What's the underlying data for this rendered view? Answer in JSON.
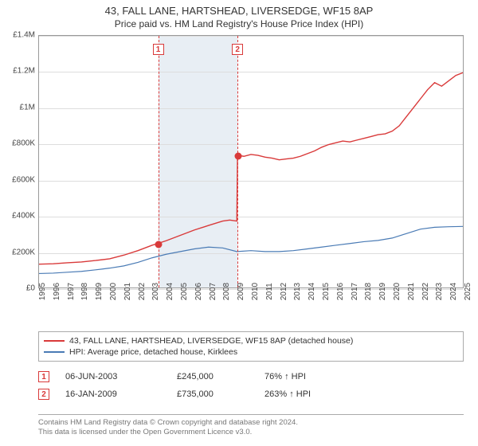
{
  "title": {
    "main": "43, FALL LANE, HARTSHEAD, LIVERSEDGE, WF15 8AP",
    "sub": "Price paid vs. HM Land Registry's House Price Index (HPI)"
  },
  "chart": {
    "type": "line",
    "background_color": "#ffffff",
    "shade_color": "#e8eef4",
    "grid_color": "#dddddd",
    "border_color": "#999999",
    "dash_color": "#d93a3a",
    "x_years": [
      1995,
      1996,
      1997,
      1998,
      1999,
      2000,
      2001,
      2002,
      2003,
      2004,
      2005,
      2006,
      2007,
      2008,
      2009,
      2010,
      2011,
      2012,
      2013,
      2014,
      2015,
      2016,
      2017,
      2018,
      2019,
      2020,
      2021,
      2022,
      2023,
      2024,
      2025
    ],
    "xlim": [
      1995,
      2025
    ],
    "ylim": [
      0,
      1400000
    ],
    "yticks": [
      0,
      200000,
      400000,
      600000,
      800000,
      1000000,
      1200000,
      1400000
    ],
    "ylabels": [
      "£0",
      "£200K",
      "£400K",
      "£600K",
      "£800K",
      "£1M",
      "£1.2M",
      "£1.4M"
    ],
    "shade_band": [
      2003.4,
      2009.0
    ],
    "series": {
      "price": {
        "color": "#d93a3a",
        "width": 1.4,
        "label": "43, FALL LANE, HARTSHEAD, LIVERSEDGE, WF15 8AP (detached house)",
        "points": [
          [
            1995.0,
            130000
          ],
          [
            1996.0,
            132000
          ],
          [
            1997.0,
            138000
          ],
          [
            1998.0,
            142000
          ],
          [
            1999.0,
            150000
          ],
          [
            2000.0,
            160000
          ],
          [
            2001.0,
            180000
          ],
          [
            2002.0,
            205000
          ],
          [
            2003.0,
            235000
          ],
          [
            2003.4,
            245000
          ],
          [
            2004.0,
            260000
          ],
          [
            2005.0,
            290000
          ],
          [
            2006.0,
            320000
          ],
          [
            2007.0,
            345000
          ],
          [
            2008.0,
            370000
          ],
          [
            2008.5,
            375000
          ],
          [
            2009.0,
            370000
          ],
          [
            2009.05,
            735000
          ],
          [
            2009.5,
            730000
          ],
          [
            2010.0,
            740000
          ],
          [
            2010.5,
            735000
          ],
          [
            2011.0,
            725000
          ],
          [
            2011.5,
            720000
          ],
          [
            2012.0,
            710000
          ],
          [
            2012.5,
            715000
          ],
          [
            2013.0,
            720000
          ],
          [
            2013.5,
            730000
          ],
          [
            2014.0,
            745000
          ],
          [
            2014.5,
            760000
          ],
          [
            2015.0,
            780000
          ],
          [
            2015.5,
            795000
          ],
          [
            2016.0,
            805000
          ],
          [
            2016.5,
            815000
          ],
          [
            2017.0,
            810000
          ],
          [
            2017.5,
            820000
          ],
          [
            2018.0,
            830000
          ],
          [
            2018.5,
            840000
          ],
          [
            2019.0,
            850000
          ],
          [
            2019.5,
            855000
          ],
          [
            2020.0,
            870000
          ],
          [
            2020.5,
            900000
          ],
          [
            2021.0,
            950000
          ],
          [
            2021.5,
            1000000
          ],
          [
            2022.0,
            1050000
          ],
          [
            2022.5,
            1100000
          ],
          [
            2023.0,
            1140000
          ],
          [
            2023.5,
            1120000
          ],
          [
            2024.0,
            1150000
          ],
          [
            2024.5,
            1180000
          ],
          [
            2025.0,
            1195000
          ]
        ]
      },
      "hpi": {
        "color": "#4a7bb5",
        "width": 1.2,
        "label": "HPI: Average price, detached house, Kirklees",
        "points": [
          [
            1995.0,
            78000
          ],
          [
            1996.0,
            80000
          ],
          [
            1997.0,
            85000
          ],
          [
            1998.0,
            90000
          ],
          [
            1999.0,
            98000
          ],
          [
            2000.0,
            108000
          ],
          [
            2001.0,
            120000
          ],
          [
            2002.0,
            140000
          ],
          [
            2003.0,
            165000
          ],
          [
            2004.0,
            185000
          ],
          [
            2005.0,
            200000
          ],
          [
            2006.0,
            215000
          ],
          [
            2007.0,
            225000
          ],
          [
            2008.0,
            220000
          ],
          [
            2009.0,
            200000
          ],
          [
            2010.0,
            205000
          ],
          [
            2011.0,
            200000
          ],
          [
            2012.0,
            200000
          ],
          [
            2013.0,
            205000
          ],
          [
            2014.0,
            215000
          ],
          [
            2015.0,
            225000
          ],
          [
            2016.0,
            235000
          ],
          [
            2017.0,
            245000
          ],
          [
            2018.0,
            255000
          ],
          [
            2019.0,
            262000
          ],
          [
            2020.0,
            275000
          ],
          [
            2021.0,
            300000
          ],
          [
            2022.0,
            325000
          ],
          [
            2023.0,
            335000
          ],
          [
            2024.0,
            338000
          ],
          [
            2025.0,
            340000
          ]
        ]
      }
    },
    "markers": [
      {
        "x": 2003.4,
        "y": 245000,
        "color": "#d93a3a"
      },
      {
        "x": 2009.05,
        "y": 735000,
        "color": "#d93a3a"
      }
    ],
    "vlines": [
      {
        "x": 2003.4,
        "badge": "1"
      },
      {
        "x": 2009.0,
        "badge": "2"
      }
    ]
  },
  "legend": {
    "items": [
      {
        "color": "#d93a3a",
        "label": "43, FALL LANE, HARTSHEAD, LIVERSEDGE, WF15 8AP (detached house)"
      },
      {
        "color": "#4a7bb5",
        "label": "HPI: Average price, detached house, Kirklees"
      }
    ]
  },
  "events": [
    {
      "badge": "1",
      "date": "06-JUN-2003",
      "price": "£245,000",
      "change": "76% ↑ HPI"
    },
    {
      "badge": "2",
      "date": "16-JAN-2009",
      "price": "£735,000",
      "change": "263% ↑ HPI"
    }
  ],
  "footer": {
    "line1": "Contains HM Land Registry data © Crown copyright and database right 2024.",
    "line2": "This data is licensed under the Open Government Licence v3.0."
  }
}
